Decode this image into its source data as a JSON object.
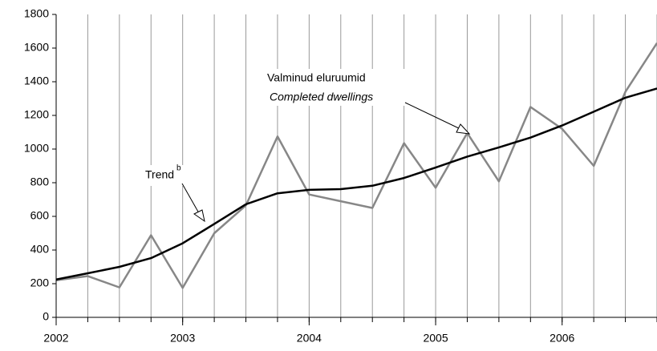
{
  "chart_data": {
    "type": "line",
    "x": [
      2002,
      2002.25,
      2002.5,
      2002.75,
      2003,
      2003.25,
      2003.5,
      2003.75,
      2004,
      2004.25,
      2004.5,
      2004.75,
      2005,
      2005.25,
      2005.5,
      2005.75,
      2006,
      2006.25,
      2006.5,
      2006.75
    ],
    "series": [
      {
        "color": "#878787",
        "values": [
          220,
          245,
          178,
          488,
          175,
          500,
          665,
          1075,
          730,
          690,
          650,
          1035,
          770,
          1095,
          808,
          1250,
          1120,
          900,
          1340,
          1630
        ]
      },
      {
        "color": "#000000",
        "values": [
          225,
          262,
          300,
          352,
          440,
          555,
          672,
          737,
          758,
          762,
          782,
          828,
          890,
          955,
          1010,
          1068,
          1140,
          1222,
          1305,
          1360
        ]
      }
    ],
    "xlim": [
      2002,
      2006.75
    ],
    "xticks": [
      2002,
      2003,
      2004,
      2005,
      2006
    ],
    "ylim": [
      0,
      1800
    ],
    "yticks": [
      0,
      200,
      400,
      600,
      800,
      1000,
      1200,
      1400,
      1600,
      1800
    ],
    "grid": true,
    "annotations": [
      "Valminud eluruumid",
      "Completed dwellings",
      "Trend",
      "b"
    ]
  }
}
